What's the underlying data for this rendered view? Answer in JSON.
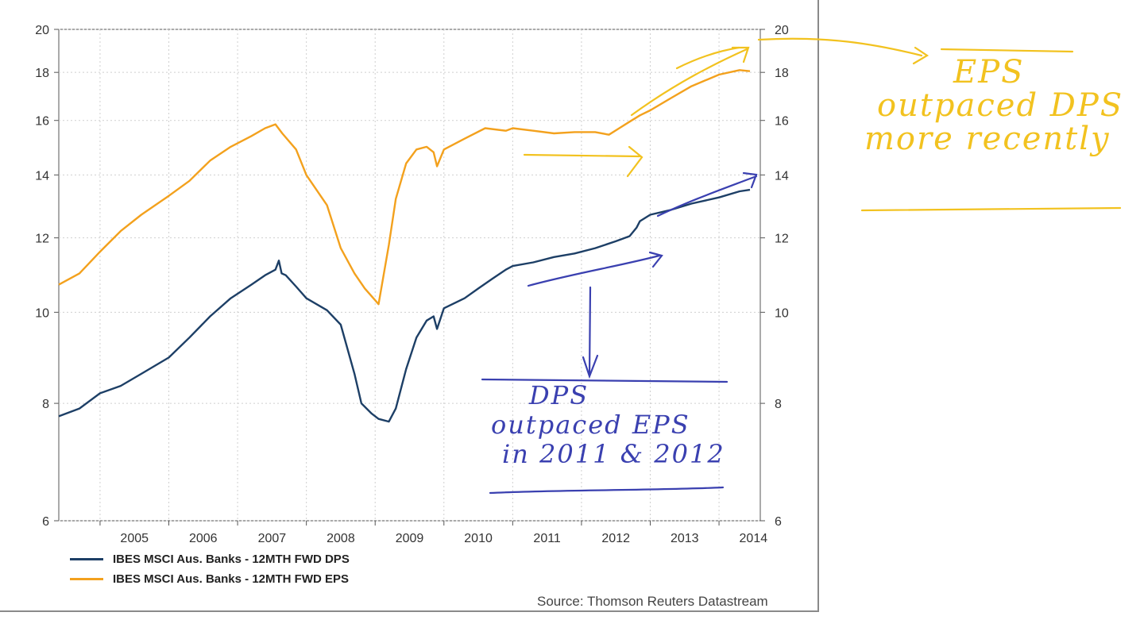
{
  "chart_data": {
    "type": "line",
    "scale": "log",
    "ylim": [
      6,
      20
    ],
    "yticks": [
      6,
      8,
      10,
      12,
      14,
      16,
      18,
      20
    ],
    "xlim": [
      2004.4,
      2014.6
    ],
    "xticks": [
      "2005",
      "2006",
      "2007",
      "2008",
      "2009",
      "2010",
      "2011",
      "2012",
      "2013",
      "2014"
    ],
    "grid": true,
    "legend_position": "bottom-left",
    "source": "Source: Thomson Reuters Datastream",
    "series": [
      {
        "name": "IBES MSCI Aus. Banks - 12MTH FWD DPS",
        "color": "#1d3f66",
        "x": [
          2004.4,
          2004.7,
          2005.0,
          2005.3,
          2005.6,
          2006.0,
          2006.3,
          2006.6,
          2006.9,
          2007.2,
          2007.4,
          2007.55,
          2007.6,
          2007.64,
          2007.7,
          2007.85,
          2008.0,
          2008.3,
          2008.5,
          2008.7,
          2008.8,
          2008.95,
          2009.05,
          2009.2,
          2009.3,
          2009.45,
          2009.6,
          2009.75,
          2009.85,
          2009.9,
          2010.0,
          2010.3,
          2010.5,
          2010.7,
          2010.9,
          2011.0,
          2011.3,
          2011.6,
          2011.9,
          2012.2,
          2012.5,
          2012.7,
          2012.8,
          2012.85,
          2013.0,
          2013.3,
          2013.6,
          2014.0,
          2014.3,
          2014.45
        ],
        "y": [
          7.75,
          7.9,
          8.2,
          8.35,
          8.6,
          8.95,
          9.4,
          9.9,
          10.35,
          10.7,
          10.95,
          11.1,
          11.35,
          11.0,
          10.95,
          10.65,
          10.35,
          10.05,
          9.7,
          8.6,
          8.0,
          7.8,
          7.7,
          7.65,
          7.9,
          8.7,
          9.4,
          9.8,
          9.9,
          9.6,
          10.1,
          10.35,
          10.6,
          10.85,
          11.1,
          11.2,
          11.3,
          11.45,
          11.55,
          11.7,
          11.9,
          12.05,
          12.3,
          12.5,
          12.7,
          12.85,
          13.05,
          13.25,
          13.45,
          13.5
        ]
      },
      {
        "name": "IBES MSCI Aus. Banks - 12MTH FWD EPS",
        "color": "#f3a11d",
        "x": [
          2004.4,
          2004.7,
          2005.0,
          2005.3,
          2005.6,
          2006.0,
          2006.3,
          2006.6,
          2006.9,
          2007.2,
          2007.4,
          2007.55,
          2007.65,
          2007.85,
          2008.0,
          2008.3,
          2008.5,
          2008.7,
          2008.85,
          2009.0,
          2009.05,
          2009.2,
          2009.3,
          2009.45,
          2009.6,
          2009.75,
          2009.85,
          2009.9,
          2010.0,
          2010.3,
          2010.6,
          2010.9,
          2011.0,
          2011.3,
          2011.6,
          2011.9,
          2012.2,
          2012.4,
          2012.55,
          2012.7,
          2012.85,
          2013.0,
          2013.3,
          2013.6,
          2014.0,
          2014.3,
          2014.45
        ],
        "y": [
          10.7,
          11.0,
          11.6,
          12.2,
          12.7,
          13.3,
          13.8,
          14.5,
          15.0,
          15.4,
          15.7,
          15.85,
          15.5,
          14.9,
          14.0,
          13.0,
          11.7,
          11.0,
          10.6,
          10.3,
          10.2,
          11.8,
          13.2,
          14.4,
          14.9,
          15.0,
          14.8,
          14.3,
          14.9,
          15.3,
          15.7,
          15.6,
          15.7,
          15.6,
          15.5,
          15.55,
          15.55,
          15.45,
          15.7,
          15.95,
          16.2,
          16.4,
          16.9,
          17.4,
          17.9,
          18.1,
          18.05
        ]
      }
    ]
  },
  "annotations": {
    "eps_note": [
      "EPS",
      "outpaced DPS",
      "more recently"
    ],
    "dps_note": [
      "DPS",
      "outpaced EPS",
      "in 2011 & 2012"
    ],
    "eps_color": "#f2c21f",
    "dps_color": "#3a40b0"
  }
}
